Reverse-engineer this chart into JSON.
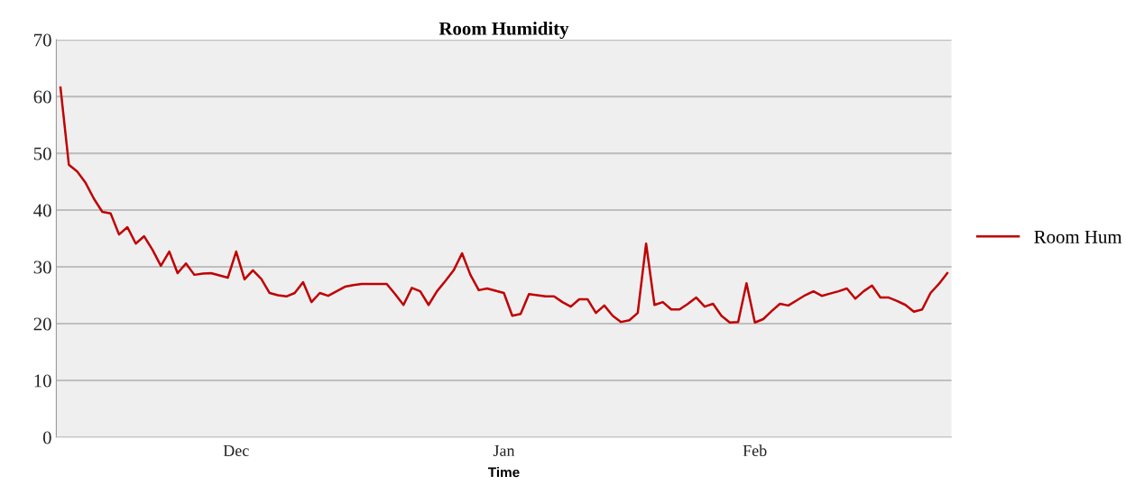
{
  "chart_data": {
    "type": "line",
    "title": "Room Humidity",
    "xlabel": "Time",
    "categories": [
      null,
      null,
      null,
      null,
      null,
      null,
      null,
      null,
      null,
      null,
      null,
      null,
      null,
      null,
      null,
      null,
      null,
      null,
      null,
      null,
      null,
      "Dec",
      null,
      null,
      null,
      null,
      null,
      null,
      null,
      null,
      null,
      null,
      null,
      null,
      null,
      null,
      null,
      null,
      null,
      null,
      null,
      null,
      null,
      null,
      null,
      null,
      null,
      null,
      null,
      null,
      null,
      null,
      null,
      "Jan",
      null,
      null,
      null,
      null,
      null,
      null,
      null,
      null,
      null,
      null,
      null,
      null,
      null,
      null,
      null,
      null,
      null,
      null,
      null,
      null,
      null,
      null,
      null,
      null,
      null,
      null,
      null,
      null,
      null,
      "Feb",
      null,
      null,
      null,
      null,
      null,
      null,
      null,
      null,
      null,
      null,
      null,
      null,
      null,
      null,
      null,
      null,
      null,
      null,
      null,
      null,
      null,
      null,
      null
    ],
    "ylim": [
      0,
      70
    ],
    "yticks": [
      0,
      10,
      20,
      30,
      40,
      50,
      60,
      70
    ],
    "grid": "y",
    "legend": "right",
    "marker": "none",
    "line_style": "solid",
    "series": [
      {
        "name": "Room Hum",
        "color": "#c00000",
        "values": [
          61.6,
          48,
          46.8,
          44.8,
          42,
          39.7,
          39.4,
          35.7,
          37,
          34.1,
          35.4,
          33,
          30.2,
          32.7,
          28.9,
          30.6,
          28.6,
          28.8,
          28.9,
          28.5,
          28.1,
          32.7,
          27.8,
          29.4,
          27.9,
          25.4,
          25,
          24.8,
          25.4,
          27.3,
          23.8,
          25.4,
          24.9,
          25.7,
          26.5,
          26.8,
          27,
          27,
          27,
          27,
          25.2,
          23.3,
          26.3,
          25.7,
          23.3,
          25.7,
          27.5,
          29.4,
          32.4,
          28.6,
          25.9,
          26.2,
          25.8,
          25.4,
          21.4,
          21.7,
          25.2,
          25,
          24.8,
          24.8,
          23.8,
          23,
          24.3,
          24.3,
          21.9,
          23.2,
          21.4,
          20.3,
          20.6,
          21.9,
          34.1,
          23.3,
          23.8,
          22.5,
          22.5,
          23.5,
          24.6,
          23,
          23.5,
          21.4,
          20.2,
          20.3,
          27.1,
          20.2,
          20.8,
          22.2,
          23.5,
          23.2,
          24.1,
          25,
          25.7,
          24.9,
          25.3,
          25.7,
          26.2,
          24.4,
          25.7,
          26.7,
          24.6,
          24.6,
          24,
          23.3,
          22.1,
          22.5,
          25.4,
          27,
          28.9
        ]
      }
    ]
  }
}
